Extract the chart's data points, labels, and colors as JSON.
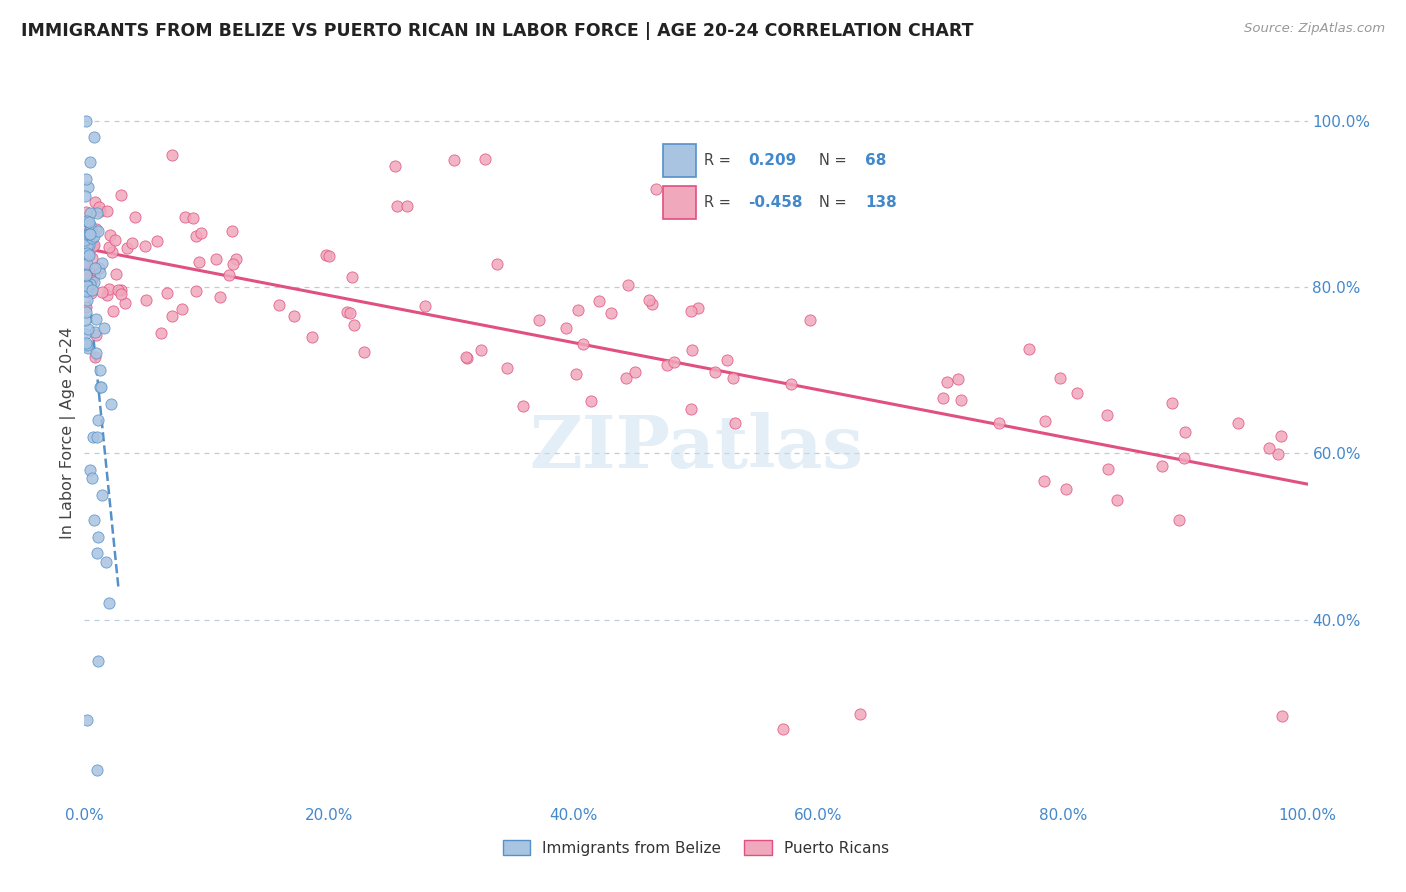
{
  "title": "IMMIGRANTS FROM BELIZE VS PUERTO RICAN IN LABOR FORCE | AGE 20-24 CORRELATION CHART",
  "source": "Source: ZipAtlas.com",
  "ylabel": "In Labor Force | Age 20-24",
  "r_belize": 0.209,
  "n_belize": 68,
  "r_puerto": -0.458,
  "n_puerto": 138,
  "color_belize": "#a8c4e0",
  "color_puerto": "#f0a8bc",
  "color_belize_line": "#5590c8",
  "color_puerto_line": "#e05080",
  "color_axis_labels": "#4488cc",
  "watermark": "ZIPatlas",
  "xlim": [
    0.0,
    1.0
  ],
  "ylim": [
    0.18,
    1.07
  ],
  "xtick_labels": [
    "0.0%",
    "20.0%",
    "40.0%",
    "60.0%",
    "80.0%",
    "100.0%"
  ],
  "xtick_vals": [
    0.0,
    0.2,
    0.4,
    0.6,
    0.8,
    1.0
  ],
  "ytick_labels_right": [
    "100.0%",
    "80.0%",
    "60.0%",
    "40.0%"
  ],
  "ytick_vals": [
    1.0,
    0.8,
    0.6,
    0.4
  ],
  "legend_labels": [
    "Immigrants from Belize",
    "Puerto Ricans"
  ]
}
